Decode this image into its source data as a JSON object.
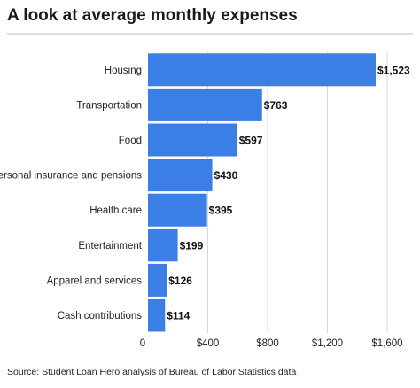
{
  "title": "A look at average monthly expenses",
  "source": "Source: Student Loan Hero analysis of Bureau of Labor Statistics data",
  "colors": {
    "bar": "#3a7ee6",
    "grid": "#d7d7d7",
    "text": "#222222"
  },
  "chart_data": {
    "type": "bar",
    "orientation": "horizontal",
    "categories": [
      "Housing",
      "Transportation",
      "Food",
      "Personal insurance and pensions",
      "Health care",
      "Entertainment",
      "Apparel and services",
      "Cash contributions"
    ],
    "values": [
      1523,
      763,
      597,
      430,
      395,
      199,
      126,
      114
    ],
    "value_labels": [
      "$1,523",
      "$763",
      "$597",
      "$430",
      "$395",
      "$199",
      "$126",
      "$114"
    ],
    "xticks": [
      0,
      400,
      800,
      1200,
      1600
    ],
    "xtick_labels": [
      "0",
      "$400",
      "$800",
      "$1,200",
      "$1,600"
    ],
    "xlim": [
      0,
      1600
    ],
    "grid": true,
    "legend": "none"
  }
}
